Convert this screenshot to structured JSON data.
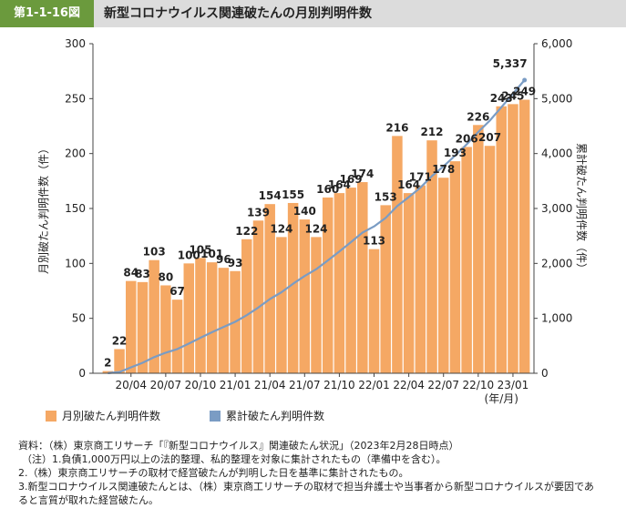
{
  "header": {
    "figure_number": "第1-1-16図",
    "title": "新型コロナウイルス関連破たんの月別判明件数"
  },
  "chart_data": {
    "type": "bar+line",
    "categories": [
      "20/02",
      "20/03",
      "20/04",
      "20/05",
      "20/06",
      "20/07",
      "20/08",
      "20/09",
      "20/10",
      "20/11",
      "20/12",
      "21/01",
      "21/02",
      "21/03",
      "21/04",
      "21/05",
      "21/06",
      "21/07",
      "21/08",
      "21/09",
      "21/10",
      "21/11",
      "21/12",
      "22/01",
      "22/02",
      "22/03",
      "22/04",
      "22/05",
      "22/06",
      "22/07",
      "22/08",
      "22/09",
      "22/10",
      "22/11",
      "22/12",
      "23/01",
      "23/02"
    ],
    "x_tick_labels": [
      "20/04",
      "20/07",
      "20/10",
      "21/01",
      "21/04",
      "21/07",
      "21/10",
      "22/01",
      "22/04",
      "22/07",
      "22/10",
      "23/01"
    ],
    "x_unit_label": "(年/月)",
    "series": [
      {
        "name": "月別破たん判明件数",
        "axis": "left",
        "kind": "bar",
        "color": "#f5a864",
        "values": [
          2,
          22,
          84,
          83,
          103,
          80,
          67,
          100,
          105,
          101,
          96,
          93,
          122,
          139,
          154,
          124,
          155,
          140,
          124,
          160,
          164,
          169,
          174,
          113,
          153,
          216,
          164,
          171,
          212,
          178,
          193,
          206,
          226,
          207,
          243,
          245,
          249
        ],
        "labels": [
          "2",
          "22",
          "84",
          "83",
          "103",
          "80",
          "67",
          "100",
          "105",
          "101",
          "96",
          "93",
          "122",
          "139",
          "154",
          "124",
          "155",
          "140",
          "124",
          "160",
          "164",
          "169",
          "174",
          "113",
          "153",
          "216",
          "164",
          "171",
          "212",
          "178",
          "193",
          "206",
          "226",
          "207",
          "243",
          "245",
          "249"
        ]
      },
      {
        "name": "累計破たん判明件数",
        "axis": "right",
        "kind": "line",
        "color": "#7a9cc4",
        "values": [
          2,
          24,
          108,
          191,
          294,
          374,
          441,
          541,
          646,
          747,
          843,
          936,
          1058,
          1197,
          1351,
          1475,
          1630,
          1770,
          1894,
          2054,
          2218,
          2387,
          2561,
          2674,
          2827,
          3043,
          3207,
          3378,
          3590,
          3768,
          3961,
          4167,
          4393,
          4600,
          4843,
          5088,
          5337
        ],
        "end_label": "5,337"
      }
    ],
    "y_left": {
      "label": "月別破たん判明件数（件）",
      "min": 0,
      "max": 300,
      "ticks": [
        "0",
        "50",
        "100",
        "150",
        "200",
        "250",
        "300"
      ]
    },
    "y_right": {
      "label": "累計破たん判明件数（件）",
      "min": 0,
      "max": 6000,
      "ticks": [
        "0",
        "1,000",
        "2,000",
        "3,000",
        "4,000",
        "5,000",
        "6,000"
      ]
    },
    "grid": false,
    "legend_position": "bottom"
  },
  "notes": [
    "資料：（株）東京商工リサーチ「『新型コロナウイルス』関連破たん状況」（2023年2月28日時点）",
    "（注）1.負債1,000万円以上の法的整理、私的整理を対象に集計されたもの（準備中を含む）。",
    "2.（株）東京商工リサーチの取材で経営破たんが判明した日を基準に集計されたもの。",
    "3.新型コロナウイルス関連破たんとは、（株）東京商工リサーチの取材で担当弁護士や当事者から新型コロナウイルスが要因であ",
    "ると言質が取れた経営破たん。"
  ],
  "colors": {
    "bar": "#f5a864",
    "line": "#7a9cc4",
    "header_accent": "#6b9a3d",
    "header_bg": "#dcdcdc"
  }
}
